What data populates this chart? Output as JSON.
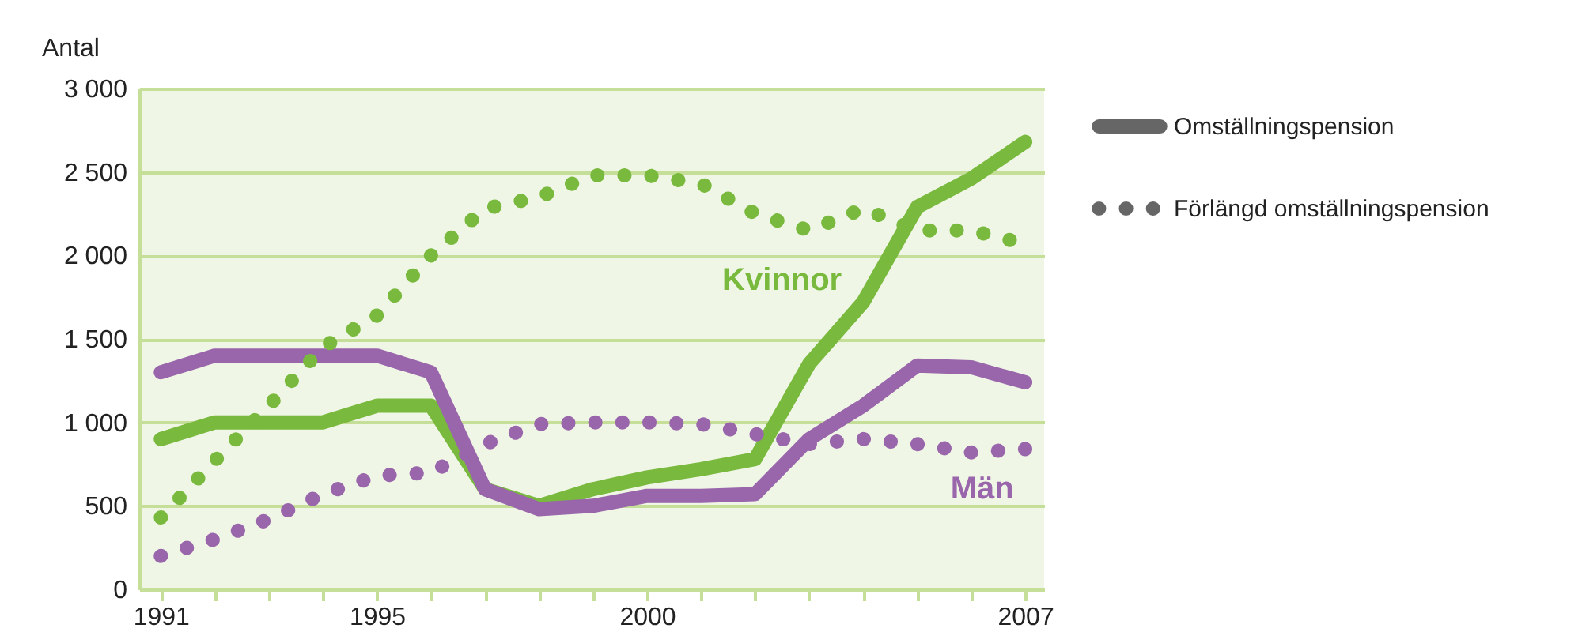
{
  "chart_data": {
    "type": "line",
    "ylabel": "Antal",
    "x": [
      1991,
      1992,
      1993,
      1994,
      1995,
      1996,
      1997,
      1998,
      1999,
      2000,
      2001,
      2002,
      2003,
      2004,
      2005,
      2006,
      2007
    ],
    "xlim": [
      1990.6,
      2007.35
    ],
    "xticks": [
      1991,
      {
        "value": 1992,
        "label": null
      },
      {
        "value": 1993,
        "label": null
      },
      {
        "value": 1994,
        "label": null
      },
      1995,
      {
        "value": 1996,
        "label": null
      },
      {
        "value": 1997,
        "label": null
      },
      {
        "value": 1998,
        "label": null
      },
      {
        "value": 1999,
        "label": null
      },
      2000,
      {
        "value": 2001,
        "label": null
      },
      {
        "value": 2002,
        "label": null
      },
      {
        "value": 2003,
        "label": null
      },
      {
        "value": 2004,
        "label": null
      },
      {
        "value": 2005,
        "label": null
      },
      {
        "value": 2006,
        "label": null
      },
      2007
    ],
    "ylim": [
      0,
      3000
    ],
    "yticks": [
      0,
      500,
      {
        "value": 1000,
        "label": "1 000"
      },
      {
        "value": 1500,
        "label": "1 500"
      },
      {
        "value": 2000,
        "label": "2 000"
      },
      {
        "value": 2500,
        "label": "2 500"
      },
      {
        "value": 3000,
        "label": "3 000"
      }
    ],
    "grid": "y",
    "legend": "right",
    "marker": "none",
    "series": [
      {
        "name": "Kvinnor",
        "color": "#79b93d",
        "line_style": "solid",
        "values": [
          900,
          1000,
          1000,
          1000,
          1100,
          1100,
          600,
          500,
          600,
          670,
          720,
          780,
          1350,
          1720,
          2290,
          2460,
          2680
        ]
      },
      {
        "name": "Män",
        "color": "#9966ab",
        "line_style": "solid",
        "values": [
          1300,
          1400,
          1400,
          1400,
          1400,
          1300,
          600,
          480,
          500,
          560,
          560,
          570,
          900,
          1100,
          1340,
          1330,
          1240
        ]
      },
      {
        "color": "#79b93d",
        "line_style": "dotted",
        "values": [
          430,
          770,
          1100,
          1450,
          1640,
          2000,
          2280,
          2350,
          2480,
          2480,
          2430,
          2250,
          2150,
          2280,
          2150,
          2150,
          2070
        ]
      },
      {
        "color": "#9966ab",
        "line_style": "dotted",
        "values": [
          200,
          300,
          420,
          570,
          680,
          700,
          870,
          990,
          1000,
          1000,
          990,
          930,
          870,
          900,
          870,
          820,
          840
        ]
      }
    ],
    "annotations": [
      "Omställningspension",
      "Förlängd omställningspension"
    ]
  }
}
